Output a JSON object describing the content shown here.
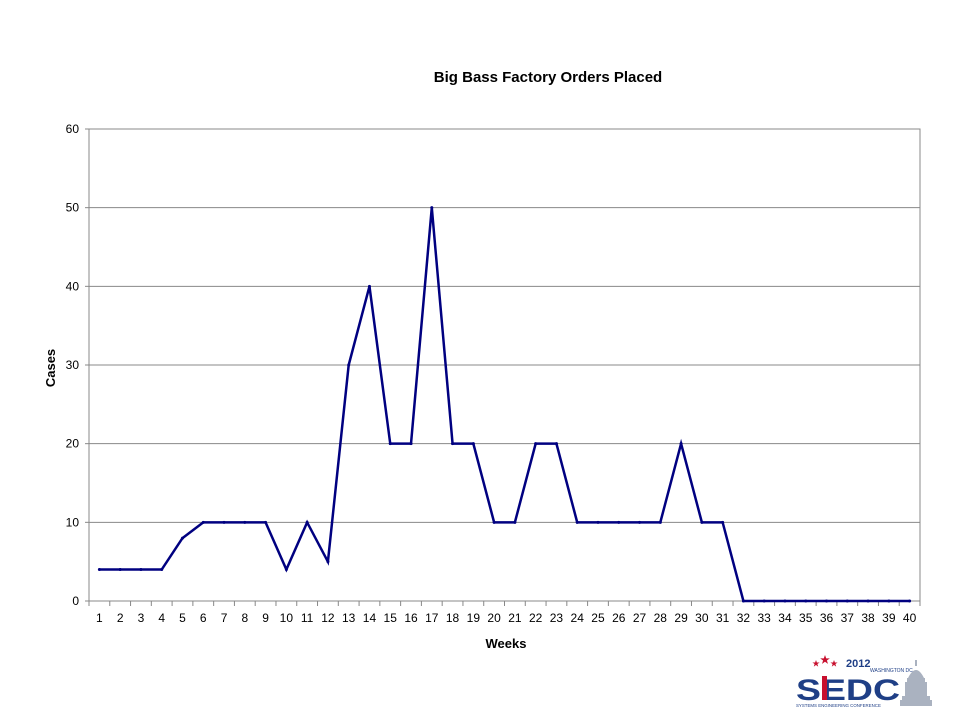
{
  "chart_data": {
    "type": "line",
    "title": "Big Bass Factory Orders Placed",
    "xlabel": "Weeks",
    "ylabel": "Cases",
    "ylim": [
      0,
      60
    ],
    "yticks": [
      "0",
      "10",
      "20",
      "30",
      "40",
      "50",
      "60"
    ],
    "grid": true,
    "x": [
      "1",
      "2",
      "3",
      "4",
      "5",
      "6",
      "7",
      "8",
      "9",
      "10",
      "11",
      "12",
      "13",
      "14",
      "15",
      "16",
      "17",
      "18",
      "19",
      "20",
      "21",
      "22",
      "23",
      "24",
      "25",
      "26",
      "27",
      "28",
      "29",
      "30",
      "31",
      "32",
      "33",
      "34",
      "35",
      "36",
      "37",
      "38",
      "39",
      "40"
    ],
    "series": [
      {
        "values": [
          4,
          4,
          4,
          4,
          8,
          10,
          10,
          10,
          10,
          4,
          10,
          5,
          30,
          40,
          20,
          20,
          50,
          20,
          20,
          10,
          10,
          20,
          20,
          10,
          10,
          10,
          10,
          10,
          20,
          10,
          10,
          0,
          0,
          0,
          0,
          0,
          0,
          0,
          0,
          0
        ],
        "color": "#000080"
      }
    ]
  },
  "logo": {
    "year": "2012",
    "city": "WASHINGTON DC",
    "main_letters": "SEDC",
    "tagline": "SYSTEMS ENGINEERING CONFERENCE",
    "primary_color": "#1f3f86",
    "accent_color": "#c8102e"
  }
}
